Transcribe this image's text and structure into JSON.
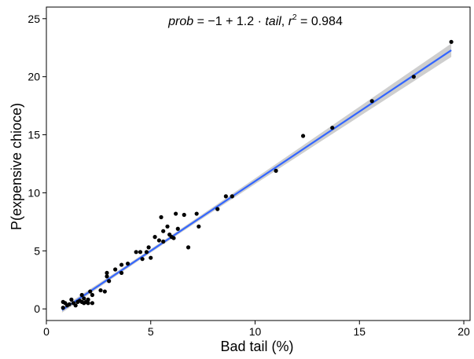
{
  "chart_data": {
    "type": "scatter",
    "xlabel": "Bad tail (%)",
    "ylabel": "P(expensive chioce)",
    "annotation": {
      "lhs": "prob",
      "eq": " = ",
      "rhs_pre": "−1 + 1.2 · ",
      "rhs_var": "tail",
      "sep": ",  ",
      "r_var": "r",
      "r_sup": "2",
      "r_val": " = 0.984"
    },
    "xlim": [
      0,
      20.3
    ],
    "ylim": [
      -1,
      26
    ],
    "x_ticks": [
      0,
      5,
      10,
      15,
      20
    ],
    "y_ticks": [
      0,
      5,
      10,
      15,
      20,
      25
    ],
    "grid": false,
    "fit": {
      "intercept": -1,
      "slope": 1.2,
      "r2": 0.984,
      "x_range": [
        0.75,
        19.4
      ],
      "line_color": "#3366ff",
      "band_color": "#bdbdbd"
    },
    "point_color": "#000000",
    "points": [
      [
        0.8,
        0.1
      ],
      [
        0.8,
        0.6
      ],
      [
        0.9,
        0.5
      ],
      [
        1.0,
        0.3
      ],
      [
        1.1,
        0.4
      ],
      [
        1.2,
        0.8
      ],
      [
        1.3,
        0.5
      ],
      [
        1.4,
        0.3
      ],
      [
        1.5,
        0.6
      ],
      [
        1.6,
        0.7
      ],
      [
        1.7,
        0.6
      ],
      [
        1.7,
        1.2
      ],
      [
        1.8,
        0.9
      ],
      [
        1.8,
        0.5
      ],
      [
        1.9,
        0.6
      ],
      [
        2.0,
        0.8
      ],
      [
        2.0,
        0.5
      ],
      [
        2.1,
        1.5
      ],
      [
        2.2,
        1.2
      ],
      [
        2.2,
        0.5
      ],
      [
        2.6,
        1.6
      ],
      [
        2.8,
        1.5
      ],
      [
        2.9,
        3.1
      ],
      [
        2.9,
        2.8
      ],
      [
        3.0,
        2.4
      ],
      [
        3.3,
        3.4
      ],
      [
        3.6,
        3.1
      ],
      [
        3.6,
        3.8
      ],
      [
        3.9,
        3.9
      ],
      [
        4.3,
        4.9
      ],
      [
        4.5,
        4.9
      ],
      [
        4.6,
        4.3
      ],
      [
        4.8,
        4.9
      ],
      [
        4.9,
        5.3
      ],
      [
        5.0,
        4.4
      ],
      [
        5.2,
        6.2
      ],
      [
        5.4,
        5.9
      ],
      [
        5.5,
        7.9
      ],
      [
        5.6,
        5.8
      ],
      [
        5.6,
        6.7
      ],
      [
        5.8,
        7.1
      ],
      [
        5.9,
        6.4
      ],
      [
        6.0,
        6.2
      ],
      [
        6.1,
        6.1
      ],
      [
        6.2,
        8.2
      ],
      [
        6.3,
        6.9
      ],
      [
        6.6,
        8.1
      ],
      [
        6.8,
        5.3
      ],
      [
        7.2,
        8.2
      ],
      [
        7.3,
        7.1
      ],
      [
        8.2,
        8.6
      ],
      [
        8.6,
        9.7
      ],
      [
        8.9,
        9.7
      ],
      [
        11.0,
        11.9
      ],
      [
        12.3,
        14.9
      ],
      [
        13.7,
        15.6
      ],
      [
        15.6,
        17.9
      ],
      [
        17.6,
        20.0
      ],
      [
        19.4,
        23.0
      ]
    ]
  }
}
